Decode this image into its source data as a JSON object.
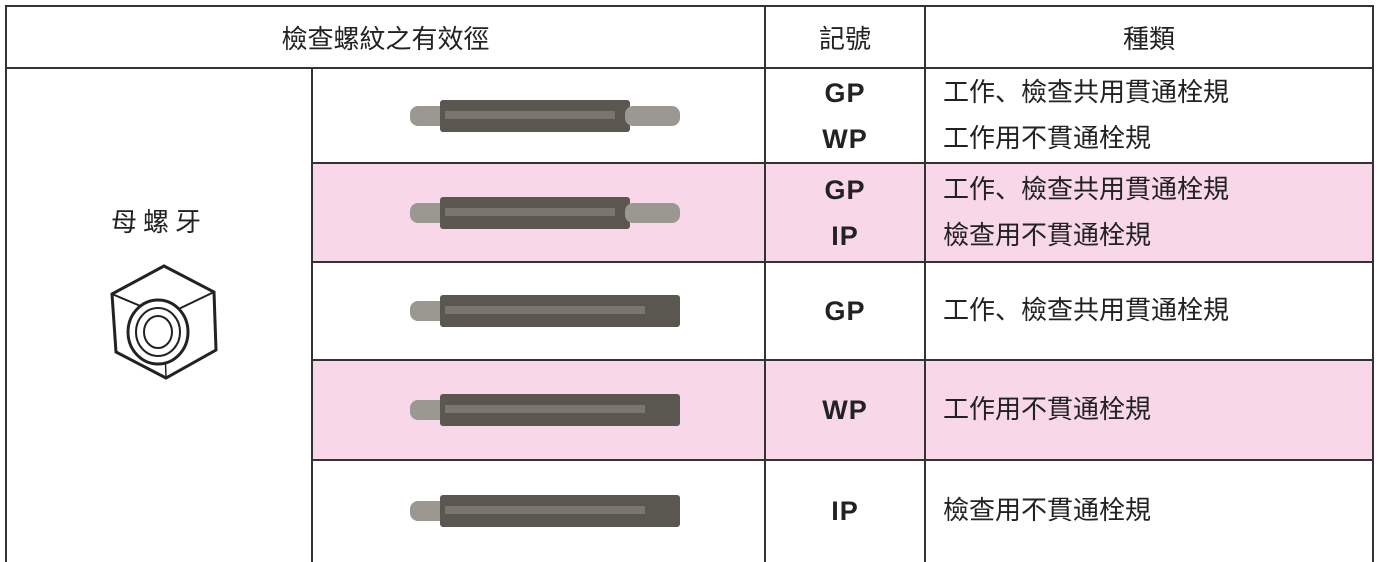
{
  "header": [
    "檢查螺紋之有效徑",
    "記號",
    "種類"
  ],
  "category": "母螺牙",
  "rows": [
    {
      "codes": [
        "GP",
        "WP"
      ],
      "types": [
        "工作、檢查共用貫通栓規",
        "工作用不貫通栓規"
      ]
    },
    {
      "codes": [
        "GP",
        "IP"
      ],
      "types": [
        "工作、檢查共用貫通栓規",
        "檢查用不貫通栓規"
      ]
    },
    {
      "codes": [
        "GP"
      ],
      "types": [
        "工作、檢查共用貫通栓規"
      ]
    },
    {
      "codes": [
        "WP"
      ],
      "types": [
        "工作用不貫通栓規"
      ]
    },
    {
      "codes": [
        "IP"
      ],
      "types": [
        "檢查用不貫通栓規"
      ]
    }
  ]
}
